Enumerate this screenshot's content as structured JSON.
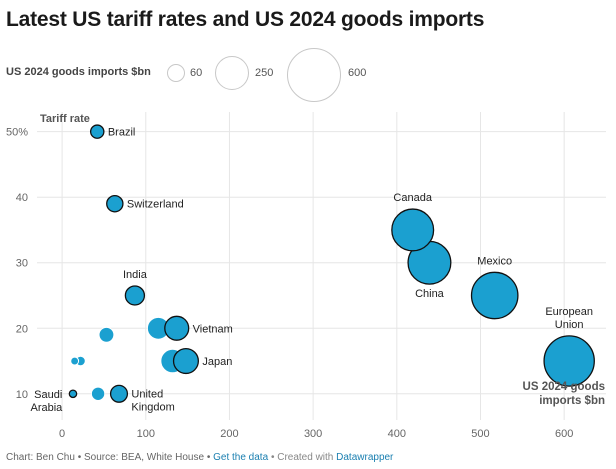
{
  "title": "Latest US tariff rates and US 2024 goods imports",
  "legend": {
    "label": "US 2024 goods imports $bn",
    "sizes": [
      60,
      250,
      600
    ],
    "size_labels": [
      "60",
      "250",
      "600"
    ]
  },
  "chart_data": {
    "type": "scatter",
    "xlabel": "US 2024 goods imports $bn",
    "ylabel": "Tariff rate",
    "xlim": [
      -30,
      650
    ],
    "ylim": [
      6,
      53
    ],
    "xticks": [
      0,
      100,
      200,
      300,
      400,
      500,
      600
    ],
    "xtick_labels": [
      "0",
      "100",
      "200",
      "300",
      "400",
      "500",
      "600"
    ],
    "yticks": [
      10,
      20,
      30,
      40,
      50
    ],
    "ytick_labels": [
      "10",
      "20",
      "30",
      "40",
      "50%"
    ],
    "grid": true,
    "colors": {
      "bubble": "#1ba0d0",
      "outline": "#111111"
    },
    "points": [
      {
        "label": "Brazil",
        "x": 42,
        "y": 50,
        "highlight": true
      },
      {
        "label": "Switzerland",
        "x": 63,
        "y": 39,
        "highlight": true
      },
      {
        "label": "India",
        "x": 87,
        "y": 25,
        "highlight": true
      },
      {
        "label": "Vietnam",
        "x": 137,
        "y": 20,
        "highlight": true
      },
      {
        "label": "Japan",
        "x": 148,
        "y": 15,
        "highlight": true
      },
      {
        "label": "Saudi Arabia",
        "x": 13,
        "y": 10,
        "highlight": true
      },
      {
        "label": "United Kingdom",
        "x": 68,
        "y": 10,
        "highlight": true
      },
      {
        "label": "Canada",
        "x": 419,
        "y": 35,
        "highlight": true
      },
      {
        "label": "Mexico",
        "x": 517,
        "y": 25,
        "highlight": true
      },
      {
        "label": "China",
        "x": 439,
        "y": 30,
        "highlight": true
      },
      {
        "label": "European Union",
        "x": 606,
        "y": 15,
        "highlight": true
      },
      {
        "label": "",
        "x": 115,
        "y": 20,
        "highlight": false
      },
      {
        "label": "",
        "x": 132,
        "y": 15,
        "highlight": false
      },
      {
        "label": "",
        "x": 53,
        "y": 19,
        "highlight": false
      },
      {
        "label": "",
        "x": 15,
        "y": 15,
        "highlight": false
      },
      {
        "label": "",
        "x": 22,
        "y": 15,
        "highlight": false
      },
      {
        "label": "",
        "x": 43,
        "y": 10,
        "highlight": false
      }
    ]
  },
  "footer": {
    "prefix": "Chart: Ben Chu • Source: BEA, White House •",
    "link1": "Get the data",
    "middle": "• Created with",
    "link2": "Datawrapper"
  }
}
